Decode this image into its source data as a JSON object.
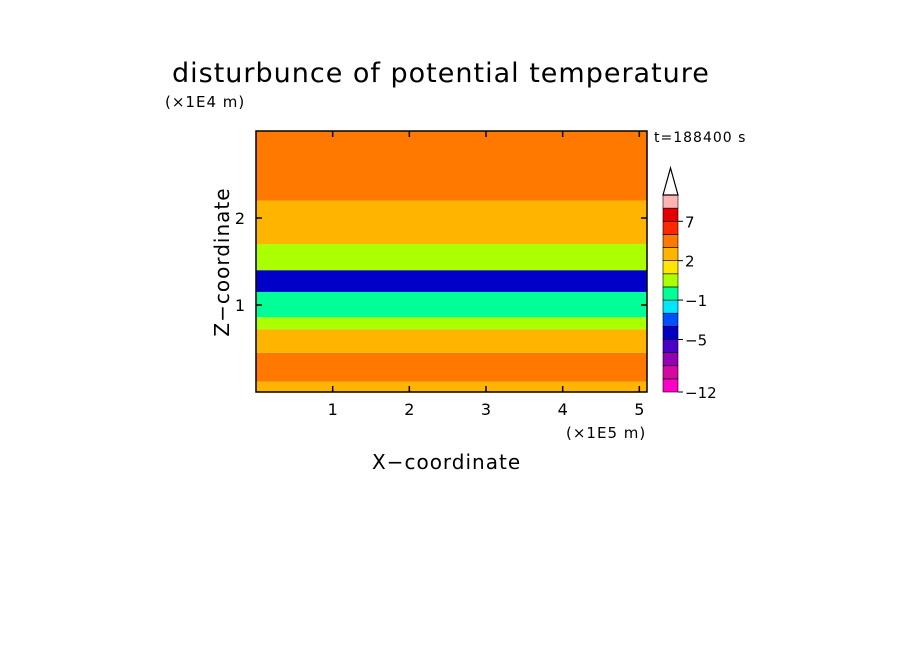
{
  "chart_data": {
    "type": "heatmap",
    "title": "disturbunce of potential temperature",
    "xlabel": "X−coordinate",
    "ylabel": "Z−coordinate",
    "x_unit_label": "(×1E5 m)",
    "y_unit_label": "(×1E4 m)",
    "time_label": "t=188400 s",
    "xlim": [
      0,
      5.1
    ],
    "ylim": [
      0,
      3.0
    ],
    "x_ticks": [
      1,
      2,
      3,
      4,
      5
    ],
    "x_tick_labels": [
      "1",
      "2",
      "3",
      "4",
      "5"
    ],
    "y_ticks": [
      1,
      2
    ],
    "y_tick_labels": [
      "1",
      "2"
    ],
    "colorbar": {
      "levels": [
        -12,
        -10,
        -8,
        -6,
        -5,
        -4,
        -3,
        -1,
        0,
        1,
        2,
        3,
        5,
        7,
        9,
        11
      ],
      "tick_labels": [
        {
          "label": "−12",
          "value": -12
        },
        {
          "label": "−5",
          "value": -5
        },
        {
          "label": "−1",
          "value": -1
        },
        {
          "label": "2",
          "value": 2
        },
        {
          "label": "7",
          "value": 7
        }
      ],
      "colors": [
        "#ff00c8",
        "#d40aa0",
        "#9600b4",
        "#4b00c8",
        "#0000c8",
        "#0050ff",
        "#00e6ff",
        "#00ff96",
        "#aaff00",
        "#ffe600",
        "#ffb400",
        "#ff7800",
        "#ff2800",
        "#e60000",
        "#ffb4b4"
      ],
      "extend": "max"
    },
    "regions": [
      {
        "x": [
          0,
          5.1
        ],
        "z": [
          0,
          0.12
        ],
        "value": 2.5
      },
      {
        "x": [
          0,
          5.1
        ],
        "z": [
          0.12,
          0.45
        ],
        "value": 3.5
      },
      {
        "x": [
          0,
          5.1
        ],
        "z": [
          0.45,
          0.72
        ],
        "value": 2.5
      },
      {
        "x": [
          0,
          5.1
        ],
        "z": [
          0.72,
          0.86
        ],
        "value": 0.5
      },
      {
        "x": [
          0,
          5.1
        ],
        "z": [
          0.86,
          1.15
        ],
        "value": -0.5
      },
      {
        "x": [
          0,
          5.1
        ],
        "z": [
          1.15,
          1.4
        ],
        "value": -4.5
      },
      {
        "x": [
          0,
          5.1
        ],
        "z": [
          1.4,
          1.7
        ],
        "value": 0.5
      },
      {
        "x": [
          0,
          5.1
        ],
        "z": [
          1.7,
          2.2
        ],
        "value": 2.5
      },
      {
        "x": [
          0,
          5.1
        ],
        "z": [
          2.2,
          3.0
        ],
        "value": 3.5
      }
    ]
  }
}
